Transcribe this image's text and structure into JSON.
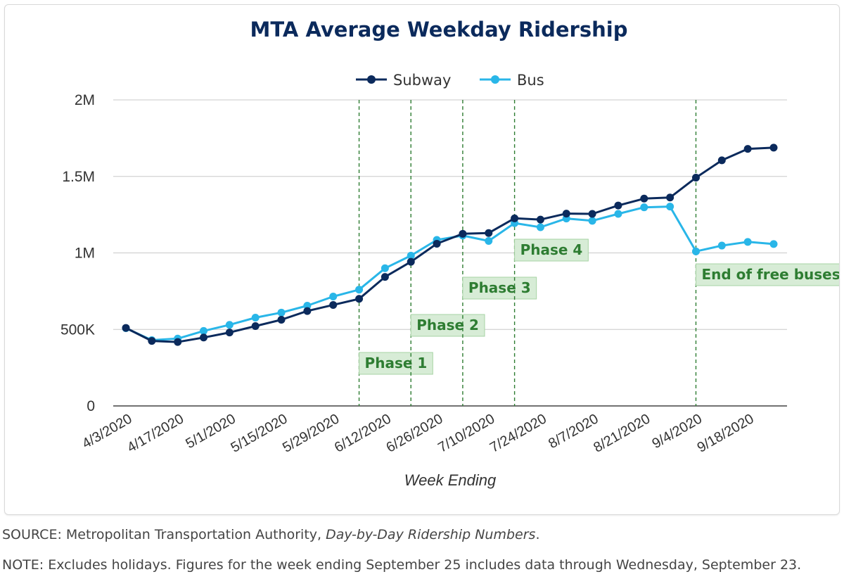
{
  "chart_data": {
    "type": "line",
    "title": "MTA Average Weekday Ridership",
    "xlabel": "Week Ending",
    "ylabel": "",
    "ylim": [
      0,
      2000000
    ],
    "y_ticks": [
      {
        "value": 0,
        "label": "0"
      },
      {
        "value": 500000,
        "label": "500K"
      },
      {
        "value": 1000000,
        "label": "1M"
      },
      {
        "value": 1500000,
        "label": "1.5M"
      },
      {
        "value": 2000000,
        "label": "2M"
      }
    ],
    "categories": [
      "4/3/2020",
      "4/10/2020",
      "4/17/2020",
      "4/24/2020",
      "5/1/2020",
      "5/8/2020",
      "5/15/2020",
      "5/22/2020",
      "5/29/2020",
      "6/5/2020",
      "6/12/2020",
      "6/19/2020",
      "6/26/2020",
      "7/3/2020",
      "7/10/2020",
      "7/17/2020",
      "7/24/2020",
      "7/31/2020",
      "8/7/2020",
      "8/14/2020",
      "8/21/2020",
      "8/28/2020",
      "9/4/2020",
      "9/11/2020",
      "9/18/2020",
      "9/25/2020"
    ],
    "x_tick_labels": [
      "4/3/2020",
      "4/17/2020",
      "5/1/2020",
      "5/15/2020",
      "5/29/2020",
      "6/12/2020",
      "6/26/2020",
      "7/10/2020",
      "7/24/2020",
      "8/7/2020",
      "8/21/2020",
      "9/4/2020",
      "9/18/2020"
    ],
    "series": [
      {
        "name": "Subway",
        "color": "#0b2a5c",
        "values": [
          510000,
          425000,
          418000,
          447000,
          480000,
          522000,
          563000,
          620000,
          660000,
          700000,
          843000,
          942000,
          1060000,
          1125000,
          1130000,
          1226000,
          1218000,
          1257000,
          1255000,
          1310000,
          1355000,
          1362000,
          1492000,
          1605000,
          1680000,
          1688000
        ]
      },
      {
        "name": "Bus",
        "color": "#29b6e8",
        "values": [
          508000,
          430000,
          440000,
          490000,
          530000,
          577000,
          610000,
          655000,
          715000,
          760000,
          900000,
          982000,
          1085000,
          1113000,
          1078000,
          1195000,
          1168000,
          1225000,
          1210000,
          1255000,
          1298000,
          1303000,
          1010000,
          1048000,
          1072000,
          1058000
        ]
      }
    ],
    "annotations": [
      {
        "label": "Phase 1",
        "at_index": 9
      },
      {
        "label": "Phase 2",
        "at_index": 11
      },
      {
        "label": "Phase 3",
        "at_index": 13
      },
      {
        "label": "Phase 4",
        "at_index": 15
      },
      {
        "label": "End of free buses",
        "at_index": 22
      }
    ],
    "legend": "top-center",
    "grid": true
  },
  "colors": {
    "title": "#0b2a5c",
    "grid": "#c8c8c8",
    "annotation_line": "#2e7d32",
    "annotation_text": "#2e7d32",
    "annotation_fill": "#d7ecd6",
    "annotation_border": "#a7d3a4"
  },
  "footer": {
    "source_prefix": "SOURCE: Metropolitan Transportation Authority, ",
    "source_italic": "Day-by-Day Ridership Numbers",
    "source_suffix": ".",
    "note": "NOTE: Excludes holidays.  Figures for the week ending September 25 includes data through Wednesday, September 23."
  }
}
